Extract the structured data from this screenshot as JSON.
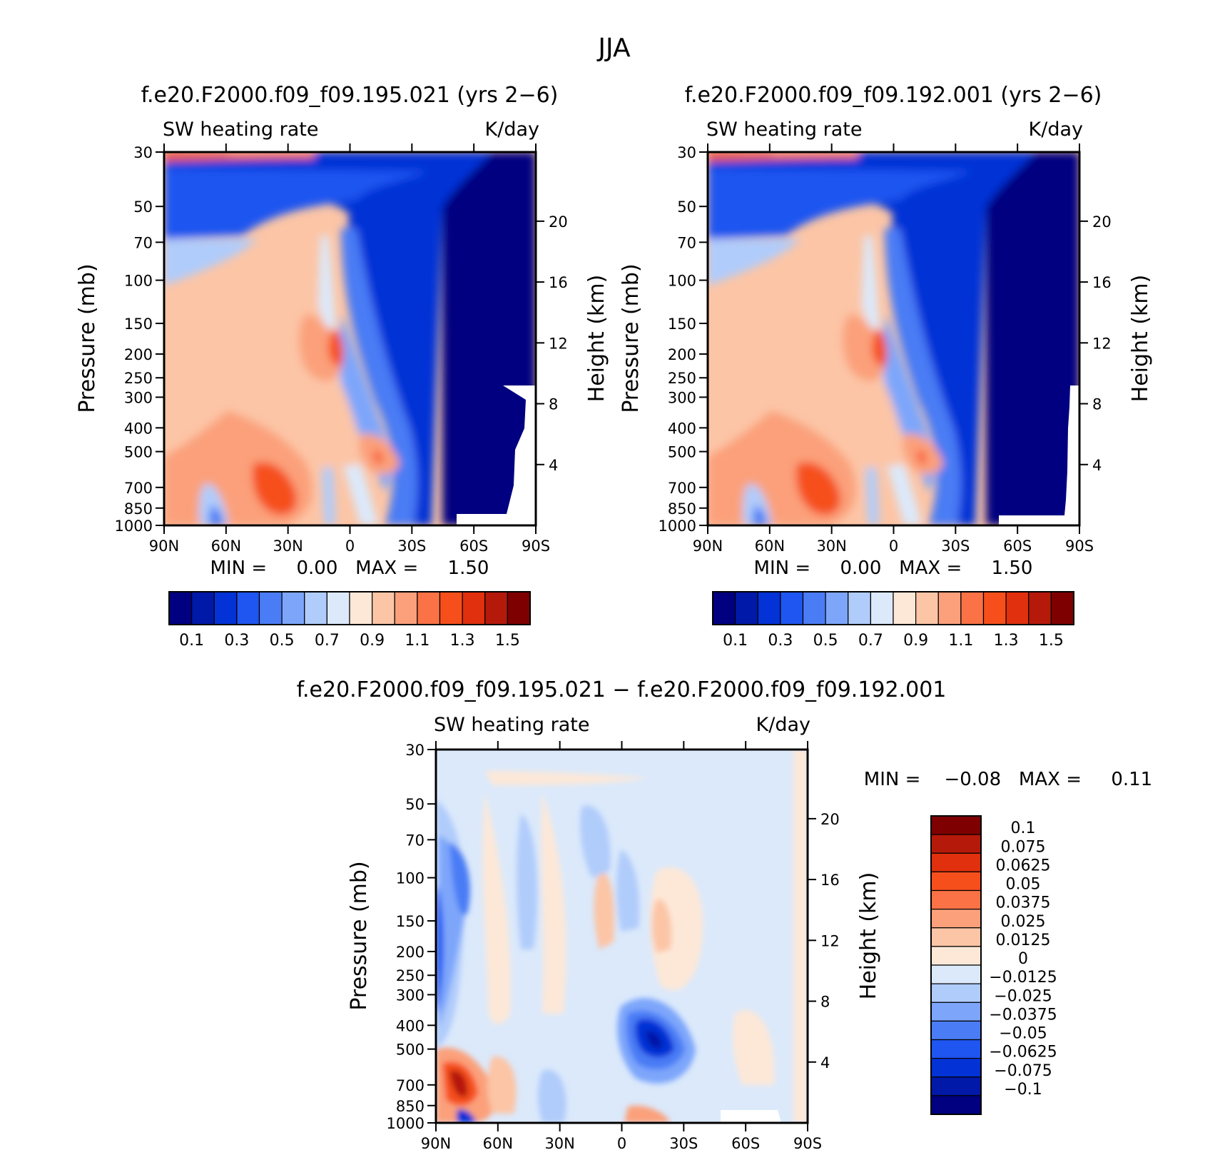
{
  "figure_title": "JJA",
  "panels": [
    {
      "title": "f.e20.F2000.f09_f09.195.021 (yrs 2−6)",
      "left_label": "SW heating rate",
      "right_label": "K/day",
      "min_max": "MIN =     0.00   MAX =     1.50",
      "colorbar_labels": [
        "0.1",
        "0.3",
        "0.5",
        "0.7",
        "0.9",
        "1.1",
        "1.3",
        "1.5"
      ]
    },
    {
      "title": "f.e20.F2000.f09_f09.192.001 (yrs 2−6)",
      "left_label": "SW heating rate",
      "right_label": "K/day",
      "min_max": "MIN =     0.00   MAX =     1.50",
      "colorbar_labels": [
        "0.1",
        "0.3",
        "0.5",
        "0.7",
        "0.9",
        "1.1",
        "1.3",
        "1.5"
      ]
    },
    {
      "title": "f.e20.F2000.f09_f09.195.021 − f.e20.F2000.f09_f09.192.001",
      "left_label": "SW heating rate",
      "right_label": "K/day",
      "min_max": "MIN =    −0.08   MAX =     0.11",
      "colorbar_labels": [
        "0.1",
        "0.075",
        "0.0625",
        "0.05",
        "0.0375",
        "0.025",
        "0.0125",
        "0",
        "−0.0125",
        "−0.025",
        "−0.0375",
        "−0.05",
        "−0.0625",
        "−0.075",
        "−0.1"
      ]
    }
  ],
  "axes": {
    "ylabel": "Pressure (mb)",
    "y2label": "Height (km)",
    "pressure_ticks": [
      "30",
      "50",
      "70",
      "100",
      "150",
      "200",
      "250",
      "300",
      "400",
      "500",
      "700",
      "850",
      "1000"
    ],
    "height_ticks": [
      "20",
      "16",
      "12",
      "8",
      "4"
    ],
    "lat_ticks": [
      "90N",
      "60N",
      "30N",
      "0",
      "30S",
      "60S",
      "90S"
    ]
  },
  "colors": {
    "full_scale": [
      "#000080",
      "#0019a8",
      "#0332d6",
      "#1f55f0",
      "#4a7cf5",
      "#7da6fb",
      "#b0ccfb",
      "#dbe9fb",
      "#fde8d8",
      "#fcc5a6",
      "#fba07a",
      "#fa7245",
      "#f64f1c",
      "#e0300d",
      "#b5190a",
      "#7f0000"
    ],
    "diff_scale": [
      "#000080",
      "#0019a8",
      "#0332d6",
      "#1f55f0",
      "#4a7cf5",
      "#7da6fb",
      "#b0ccfb",
      "#dbe9fb",
      "#fde8d8",
      "#fcc5a6",
      "#fba07a",
      "#fa7245",
      "#f64f1c",
      "#e0300d",
      "#b5190a",
      "#7f0000"
    ]
  },
  "chart_data": [
    {
      "type": "heatmap",
      "title": "f.e20.F2000.f09_f09.195.021 (yrs 2−6)",
      "subtitle": "SW heating rate (K/day)",
      "xlabel": "",
      "ylabel": "Pressure (mb)",
      "y2label": "Height (km)",
      "x_range": [
        90,
        -90
      ],
      "y_range": [
        1000,
        30
      ],
      "levels": [
        0.1,
        0.2,
        0.3,
        0.4,
        0.5,
        0.6,
        0.7,
        0.8,
        0.9,
        1.0,
        1.1,
        1.2,
        1.3,
        1.4,
        1.5
      ],
      "min": 0.0,
      "max": 1.5
    },
    {
      "type": "heatmap",
      "title": "f.e20.F2000.f09_f09.192.001 (yrs 2−6)",
      "subtitle": "SW heating rate (K/day)",
      "xlabel": "",
      "ylabel": "Pressure (mb)",
      "y2label": "Height (km)",
      "x_range": [
        90,
        -90
      ],
      "y_range": [
        1000,
        30
      ],
      "levels": [
        0.1,
        0.2,
        0.3,
        0.4,
        0.5,
        0.6,
        0.7,
        0.8,
        0.9,
        1.0,
        1.1,
        1.2,
        1.3,
        1.4,
        1.5
      ],
      "min": 0.0,
      "max": 1.5
    },
    {
      "type": "heatmap",
      "title": "f.e20.F2000.f09_f09.195.021 − f.e20.F2000.f09_f09.192.001",
      "subtitle": "SW heating rate (K/day)",
      "xlabel": "",
      "ylabel": "Pressure (mb)",
      "y2label": "Height (km)",
      "x_range": [
        90,
        -90
      ],
      "y_range": [
        1000,
        30
      ],
      "levels": [
        -0.1,
        -0.075,
        -0.0625,
        -0.05,
        -0.0375,
        -0.025,
        -0.0125,
        0,
        0.0125,
        0.025,
        0.0375,
        0.05,
        0.0625,
        0.075,
        0.1
      ],
      "min": -0.08,
      "max": 0.11
    }
  ]
}
